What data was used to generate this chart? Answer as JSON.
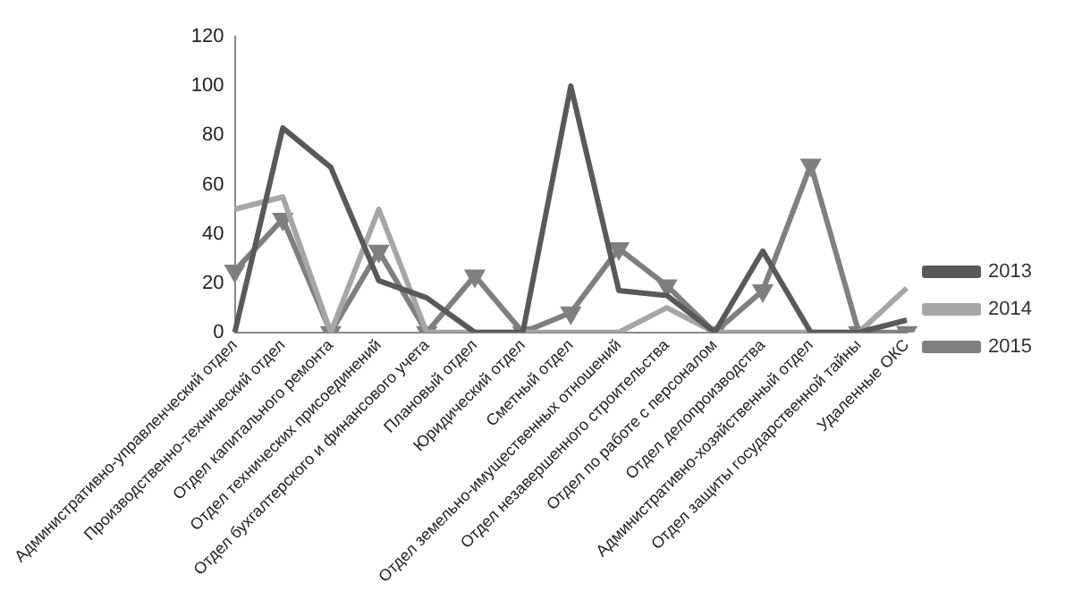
{
  "chart_data": {
    "type": "line",
    "categories": [
      "Административно-управленческий отдел",
      "Производственно-технический отдел",
      "Отдел капитального ремонта",
      "Отдел технических присоединений",
      "Отдел бухгалтерского и финансового учета",
      "Плановый отдел",
      "Юридический отдел",
      "Сметный отдел",
      "Отдел земельно-имущественных отношений",
      "Отдел незавершенного строительства",
      "Отдел по работе с персоналом",
      "Отдел делопроизводства",
      "Административно-хозяйственный отдел",
      "Отдел защиты государственной тайны",
      "Удаленные ОКС"
    ],
    "series": [
      {
        "name": "2013",
        "color": "#595959",
        "values": [
          0,
          83,
          67,
          21,
          14,
          0,
          0,
          100,
          17,
          15,
          0,
          33,
          0,
          0,
          5
        ]
      },
      {
        "name": "2014",
        "color": "#a6a6a6",
        "values": [
          50,
          55,
          0,
          50,
          0,
          0,
          0,
          0,
          0,
          10,
          0,
          0,
          0,
          0,
          18
        ]
      },
      {
        "name": "2015",
        "color": "#7f7f7f",
        "marker": "triangle",
        "values": [
          25,
          46,
          0,
          33,
          0,
          23,
          0,
          8,
          34,
          19,
          0,
          17,
          68,
          0,
          0
        ]
      }
    ],
    "ylim": [
      0,
      120
    ],
    "yticks": [
      0,
      20,
      40,
      60,
      80,
      100,
      120
    ],
    "grid": false,
    "legend": "right"
  }
}
